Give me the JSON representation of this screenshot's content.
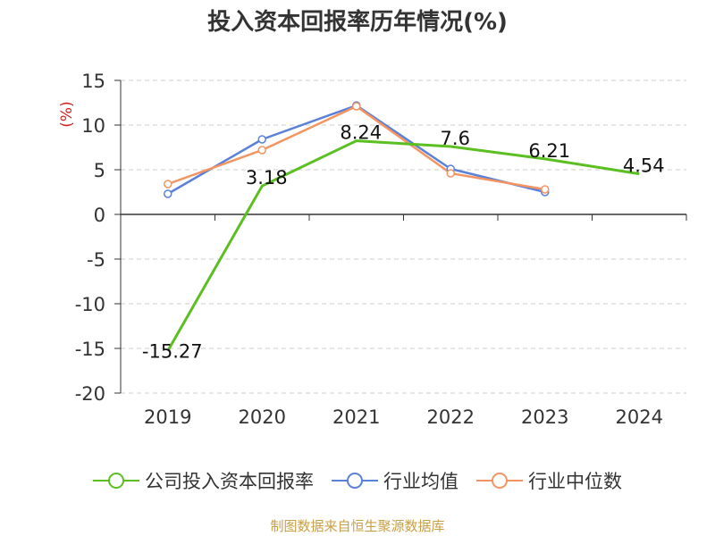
{
  "chart_data": {
    "type": "line",
    "title": "投入资本回报率历年情况(%)",
    "ylabel": "(%)",
    "xlabel": "",
    "ylim": [
      -20,
      15
    ],
    "yticks": [
      15,
      10,
      5,
      0,
      -5,
      -10,
      -15,
      -20
    ],
    "categories": [
      "2019",
      "2020",
      "2021",
      "2022",
      "2023",
      "2024"
    ],
    "grid": true,
    "series": [
      {
        "name": "公司投入资本回报率",
        "color": "#5bbf22",
        "values": [
          -15.27,
          3.18,
          8.24,
          7.6,
          6.21,
          4.54
        ],
        "labels": [
          "-15.27",
          "3.18",
          "8.24",
          "7.6",
          "6.21",
          "4.54"
        ]
      },
      {
        "name": "行业均值",
        "color": "#5b80d8",
        "values": [
          2.3,
          8.4,
          12.2,
          5.1,
          2.5,
          null
        ]
      },
      {
        "name": "行业中位数",
        "color": "#f39461",
        "values": [
          3.4,
          7.2,
          12.1,
          4.6,
          2.8,
          null
        ]
      }
    ]
  },
  "footer": {
    "source": "制图数据来自恒生聚源数据库"
  }
}
